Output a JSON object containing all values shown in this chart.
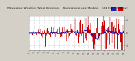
{
  "title": "Milwaukee Weather Wind Direction    Normalized and Median    (24 Hours) (New)",
  "title_fontsize": 3.2,
  "background_color": "#d4d0c8",
  "plot_bg_color": "#ffffff",
  "bar_color": "#cc0000",
  "median_color": "#0000bb",
  "ylim": [
    -5.5,
    5.5
  ],
  "yticks": [
    -4,
    0,
    4
  ],
  "ytick_labels": [
    "-4",
    "0",
    "4"
  ],
  "grid_color": "#bbbbbb",
  "num_points": 200,
  "legend_box1_color": "#2222cc",
  "legend_box2_color": "#cc0000",
  "ylabel_side": "right"
}
